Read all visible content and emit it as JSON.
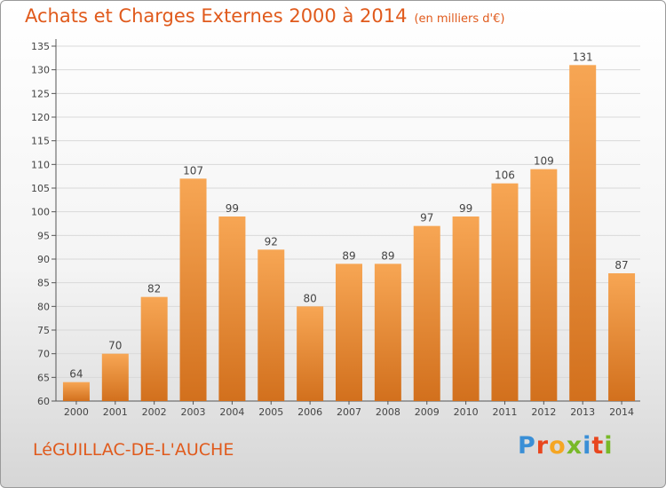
{
  "header": {
    "title": "Achats et Charges Externes 2000 à 2014",
    "subtitle": "(en milliers d'€)"
  },
  "footer": {
    "commune": "LéGUILLAC-DE-L'AUCHE",
    "brand": {
      "name": "Proxiti",
      "letters": [
        "P",
        "r",
        "o",
        "x",
        "i",
        "t",
        "i"
      ]
    }
  },
  "colors": {
    "accent": "#e05a1c",
    "bar_top": "#f7a654",
    "bar_bottom": "#d2701d",
    "brand_letters": [
      "#3a8fd6",
      "#e8461e",
      "#f5a623",
      "#78b928",
      "#3a8fd6",
      "#e8461e",
      "#78b928"
    ]
  },
  "chart_data": {
    "type": "bar",
    "title": "Achats et Charges Externes 2000 à 2014",
    "subtitle": "(en milliers d'€)",
    "categories": [
      "2000",
      "2001",
      "2002",
      "2003",
      "2004",
      "2005",
      "2006",
      "2007",
      "2008",
      "2009",
      "2010",
      "2011",
      "2012",
      "2013",
      "2014"
    ],
    "values": [
      64,
      70,
      82,
      107,
      99,
      92,
      80,
      89,
      89,
      97,
      99,
      106,
      109,
      131,
      87
    ],
    "ylim": [
      60,
      135
    ],
    "yticks": [
      60,
      65,
      70,
      75,
      80,
      85,
      90,
      95,
      100,
      105,
      110,
      115,
      120,
      125,
      130,
      135
    ],
    "grid": true,
    "data_labels": true,
    "legend": "none"
  }
}
